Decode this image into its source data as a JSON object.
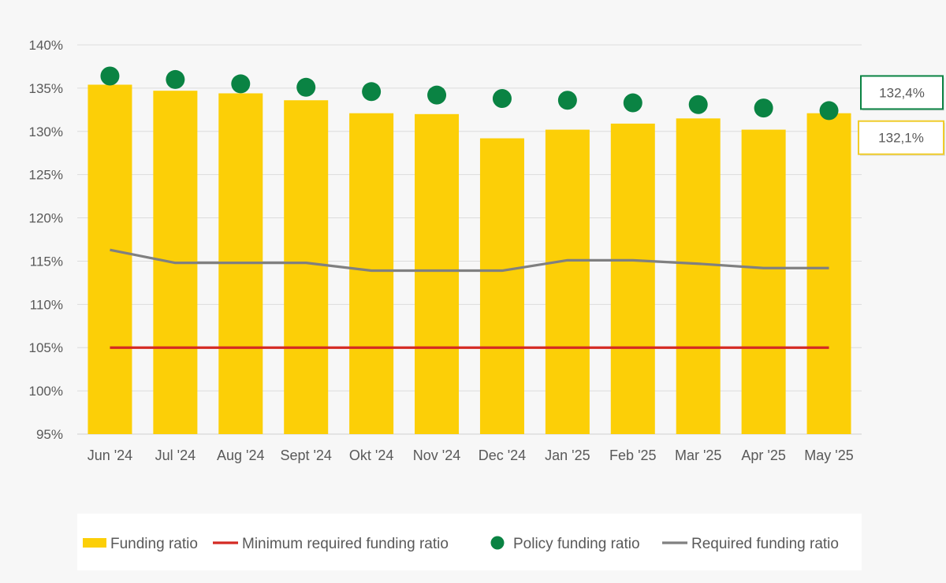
{
  "chart_data": {
    "type": "bar",
    "categories": [
      "Jun '24",
      "Jul '24",
      "Aug '24",
      "Sept '24",
      "Okt '24",
      "Nov '24",
      "Dec '24",
      "Jan '25",
      "Feb '25",
      "Mar '25",
      "Apr '25",
      "May '25"
    ],
    "ylim": [
      95,
      140
    ],
    "yticks": [
      "95%",
      "100%",
      "105%",
      "110%",
      "115%",
      "120%",
      "125%",
      "130%",
      "135%",
      "140%"
    ],
    "grid": true,
    "legend_position": "bottom",
    "series": [
      {
        "name": "Funding ratio",
        "type": "bar",
        "color": "#fccf07",
        "values": [
          135.4,
          134.7,
          134.4,
          133.6,
          132.1,
          132.0,
          129.2,
          130.2,
          130.9,
          131.5,
          130.2,
          132.1
        ]
      },
      {
        "name": "Minimum required funding ratio",
        "type": "line",
        "color": "#d42a23",
        "values": [
          105.0,
          105.0,
          105.0,
          105.0,
          105.0,
          105.0,
          105.0,
          105.0,
          105.0,
          105.0,
          105.0,
          105.0
        ]
      },
      {
        "name": "Policy funding ratio",
        "type": "scatter",
        "color": "#0a8343",
        "values": [
          136.4,
          136.0,
          135.5,
          135.1,
          134.6,
          134.2,
          133.8,
          133.6,
          133.3,
          133.1,
          132.7,
          132.4
        ]
      },
      {
        "name": "Required funding ratio",
        "type": "line",
        "color": "#808080",
        "values": [
          116.3,
          114.8,
          114.8,
          114.8,
          113.9,
          113.9,
          113.9,
          115.1,
          115.1,
          114.7,
          114.2,
          114.2
        ]
      }
    ],
    "callouts": [
      {
        "text": "132,4%",
        "series": "Policy funding ratio",
        "border": "#0a8343"
      },
      {
        "text": "132,1%",
        "series": "Funding ratio",
        "border": "#f0cc2a"
      }
    ]
  }
}
